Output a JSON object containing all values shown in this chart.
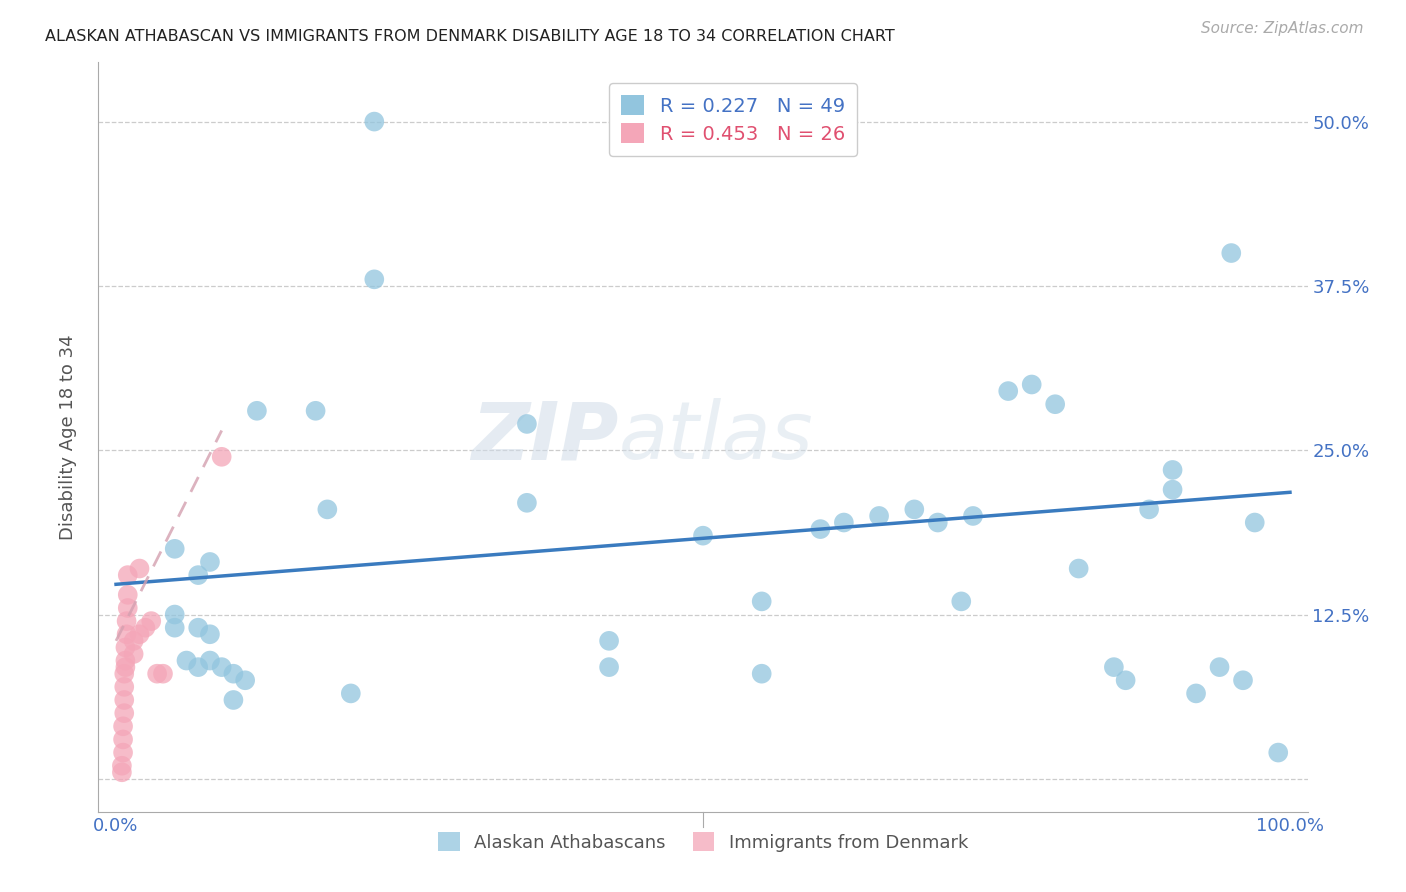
{
  "title": "ALASKAN ATHABASCAN VS IMMIGRANTS FROM DENMARK DISABILITY AGE 18 TO 34 CORRELATION CHART",
  "source": "Source: ZipAtlas.com",
  "ylabel_label": "Disability Age 18 to 34",
  "ylabel_ticks": [
    0.0,
    0.125,
    0.25,
    0.375,
    0.5
  ],
  "ylabel_tick_labels": [
    "",
    "12.5%",
    "25.0%",
    "37.5%",
    "50.0%"
  ],
  "xlim": [
    -0.015,
    1.015
  ],
  "ylim": [
    -0.025,
    0.545
  ],
  "legend_r1": "R = 0.227",
  "legend_n1": "N = 49",
  "legend_r2": "R = 0.453",
  "legend_n2": "N = 26",
  "color_blue": "#92c5de",
  "color_pink": "#f4a6b8",
  "color_blue_line": "#3a7bbf",
  "color_pink_line": "#d4a0b0",
  "color_blue_text": "#4472c4",
  "color_pink_text": "#e05070",
  "watermark_zip": "ZIP",
  "watermark_atlas": "atlas",
  "blue_scatter_x": [
    0.22,
    0.22,
    0.12,
    0.17,
    0.35,
    0.35,
    0.5,
    0.65,
    0.62,
    0.78,
    0.76,
    0.8,
    0.9,
    0.9,
    0.88,
    0.95,
    0.97,
    0.55,
    0.42,
    0.42,
    0.08,
    0.07,
    0.05,
    0.05,
    0.06,
    0.07,
    0.07,
    0.08,
    0.09,
    0.1,
    0.11,
    0.55,
    0.6,
    0.68,
    0.7,
    0.72,
    0.73,
    0.82,
    0.85,
    0.86,
    0.92,
    0.94,
    0.96,
    0.99,
    0.05,
    0.2,
    0.08,
    0.1,
    0.18
  ],
  "blue_scatter_y": [
    0.5,
    0.38,
    0.28,
    0.28,
    0.21,
    0.27,
    0.185,
    0.2,
    0.195,
    0.3,
    0.295,
    0.285,
    0.235,
    0.22,
    0.205,
    0.4,
    0.195,
    0.135,
    0.105,
    0.085,
    0.165,
    0.155,
    0.125,
    0.115,
    0.09,
    0.085,
    0.115,
    0.09,
    0.085,
    0.08,
    0.075,
    0.08,
    0.19,
    0.205,
    0.195,
    0.135,
    0.2,
    0.16,
    0.085,
    0.075,
    0.065,
    0.085,
    0.075,
    0.02,
    0.175,
    0.065,
    0.11,
    0.06,
    0.205
  ],
  "pink_scatter_x": [
    0.005,
    0.005,
    0.006,
    0.006,
    0.006,
    0.007,
    0.007,
    0.007,
    0.007,
    0.008,
    0.008,
    0.008,
    0.009,
    0.009,
    0.01,
    0.01,
    0.01,
    0.015,
    0.015,
    0.02,
    0.02,
    0.025,
    0.03,
    0.035,
    0.04,
    0.09
  ],
  "pink_scatter_y": [
    0.005,
    0.01,
    0.02,
    0.03,
    0.04,
    0.05,
    0.06,
    0.07,
    0.08,
    0.085,
    0.09,
    0.1,
    0.11,
    0.12,
    0.13,
    0.14,
    0.155,
    0.095,
    0.105,
    0.11,
    0.16,
    0.115,
    0.12,
    0.08,
    0.08,
    0.245
  ],
  "blue_trend_x": [
    0.0,
    1.0
  ],
  "blue_trend_y": [
    0.148,
    0.218
  ],
  "pink_trend_x": [
    0.0,
    0.09
  ],
  "pink_trend_y": [
    0.105,
    0.265
  ]
}
